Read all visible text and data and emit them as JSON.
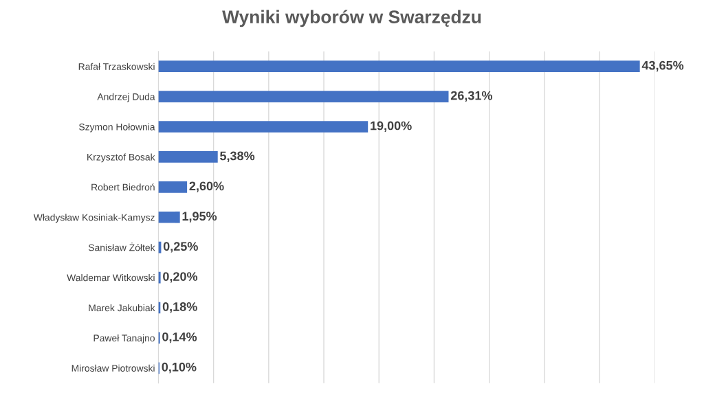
{
  "chart_data": {
    "type": "bar",
    "orientation": "horizontal",
    "title": "Wyniki wyborów w Swarzędzu",
    "categories": [
      "Rafał Trzaskowski",
      "Andrzej Duda",
      "Szymon Hołownia",
      "Krzysztof Bosak",
      "Robert Biedroń",
      "Władysław Kosiniak-Kamysz",
      "Sanisław Żółtek",
      "Waldemar Witkowski",
      "Marek Jakubiak",
      "Paweł Tanajno",
      "Mirosław Piotrowski"
    ],
    "values": [
      43.65,
      26.31,
      19.0,
      5.38,
      2.6,
      1.95,
      0.25,
      0.2,
      0.18,
      0.14,
      0.1
    ],
    "value_labels": [
      "43,65%",
      "26,31%",
      "19,00%",
      "5,38%",
      "2,60%",
      "1,95%",
      "0,25%",
      "0,20%",
      "0,18%",
      "0,14%",
      "0,10%"
    ],
    "color": "#4472c4",
    "xlim": [
      0,
      45
    ],
    "xticks": [
      0,
      5,
      10,
      15,
      20,
      25,
      30,
      35,
      40,
      45
    ],
    "tick_labels": "y",
    "grid": "x",
    "legend": false
  }
}
